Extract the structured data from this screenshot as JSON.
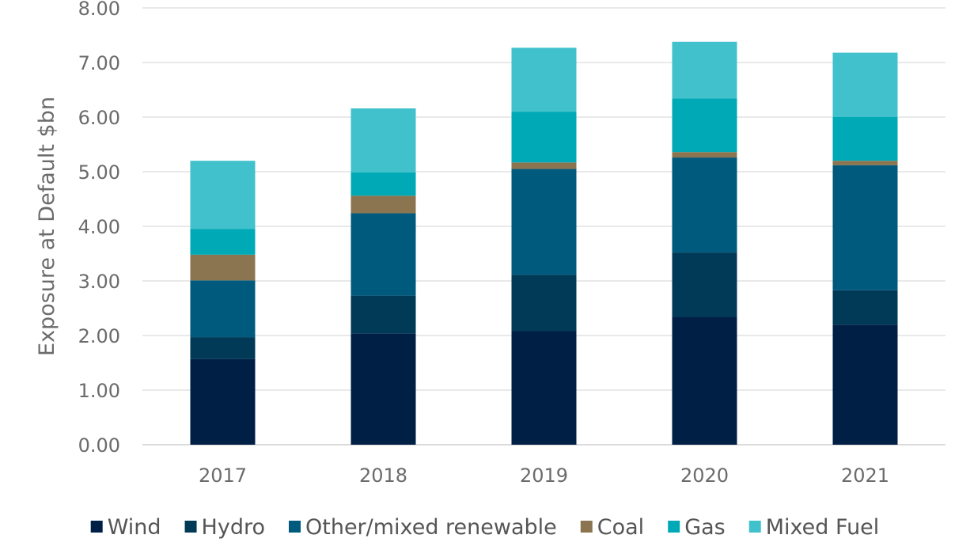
{
  "chart_data": {
    "type": "bar",
    "stacked": true,
    "ylabel": "Exposure at Default $bn",
    "xlabel": "",
    "ylim": [
      0,
      8
    ],
    "ytick_step": 1,
    "ytick_labels": [
      "0.00",
      "1.00",
      "2.00",
      "3.00",
      "4.00",
      "5.00",
      "6.00",
      "7.00",
      "8.00"
    ],
    "grid": true,
    "legend_position": "bottom",
    "categories": [
      "2017",
      "2018",
      "2019",
      "2020",
      "2021"
    ],
    "series": [
      {
        "name": "Wind",
        "color": "#001f45",
        "values": [
          1.57,
          2.04,
          2.08,
          2.34,
          2.2
        ]
      },
      {
        "name": "Hydro",
        "color": "#003a57",
        "values": [
          0.4,
          0.69,
          1.03,
          1.18,
          0.63
        ]
      },
      {
        "name": "Other/mixed renewable",
        "color": "#005a7d",
        "values": [
          1.04,
          1.51,
          1.94,
          1.74,
          2.29
        ]
      },
      {
        "name": "Coal",
        "color": "#8b7550",
        "values": [
          0.47,
          0.32,
          0.12,
          0.1,
          0.08
        ]
      },
      {
        "name": "Gas",
        "color": "#00a9b6",
        "values": [
          0.47,
          0.43,
          0.93,
          0.98,
          0.8
        ]
      },
      {
        "name": "Mixed Fuel",
        "color": "#40c1cb",
        "values": [
          1.25,
          1.17,
          1.17,
          1.04,
          1.18
        ]
      }
    ]
  }
}
